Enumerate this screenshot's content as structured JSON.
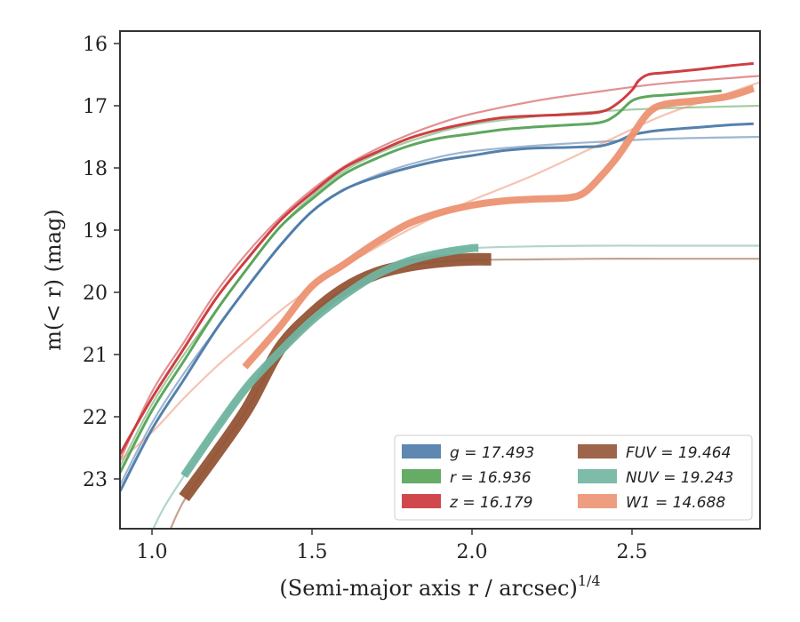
{
  "chart_data": {
    "type": "line",
    "xlabel": "(Semi-major axis r / arcsec)",
    "xlabel_sup": "1/4",
    "ylabel": "m(< r) (mag)",
    "xlim": [
      0.9,
      2.9
    ],
    "ylim": [
      23.8,
      15.8
    ],
    "y_inverted": true,
    "grid": false,
    "legend_position": "lower-right",
    "xticks": [
      1.0,
      1.5,
      2.0,
      2.5
    ],
    "xtick_labels": [
      "1.0",
      "1.5",
      "2.0",
      "2.5"
    ],
    "yticks": [
      16,
      17,
      18,
      19,
      20,
      21,
      22,
      23
    ],
    "ytick_labels": [
      "16",
      "17",
      "18",
      "19",
      "20",
      "21",
      "22",
      "23"
    ],
    "legend": [
      {
        "label": "g = 17.493",
        "color": "#4c7aa8"
      },
      {
        "label": "r = 16.936",
        "color": "#55a255"
      },
      {
        "label": "z = 16.179",
        "color": "#cc3438"
      },
      {
        "label": "FUV = 19.464",
        "color": "#935436"
      },
      {
        "label": "NUV = 19.243",
        "color": "#70b4a0"
      },
      {
        "label": "W1 = 14.688",
        "color": "#ec9272"
      }
    ],
    "series": [
      {
        "name": "g = 17.493",
        "band": "g",
        "color": "#4c7aa8",
        "data": {
          "x": [
            0.9,
            1.0,
            1.1,
            1.2,
            1.3,
            1.4,
            1.5,
            1.6,
            1.7,
            1.8,
            1.9,
            2.0,
            2.1,
            2.2,
            2.3,
            2.35,
            2.4,
            2.45,
            2.5,
            2.55,
            2.6,
            2.7,
            2.8,
            2.88
          ],
          "y": [
            23.2,
            22.2,
            21.4,
            20.6,
            19.9,
            19.25,
            18.7,
            18.35,
            18.15,
            18.0,
            17.88,
            17.8,
            17.72,
            17.68,
            17.67,
            17.66,
            17.65,
            17.58,
            17.47,
            17.42,
            17.39,
            17.35,
            17.31,
            17.29
          ],
          "width": 3
        },
        "model": {
          "x": [
            0.9,
            1.0,
            1.1,
            1.2,
            1.3,
            1.4,
            1.5,
            1.6,
            1.7,
            1.8,
            1.9,
            2.0,
            2.2,
            2.4,
            2.6,
            2.9
          ],
          "y": [
            23.1,
            22.1,
            21.3,
            20.6,
            19.9,
            19.25,
            18.7,
            18.35,
            18.12,
            17.95,
            17.82,
            17.73,
            17.64,
            17.58,
            17.53,
            17.5
          ]
        }
      },
      {
        "name": "r = 16.936",
        "band": "r",
        "color": "#55a255",
        "data": {
          "x": [
            0.9,
            1.0,
            1.1,
            1.2,
            1.3,
            1.4,
            1.5,
            1.6,
            1.7,
            1.8,
            1.9,
            2.0,
            2.1,
            2.2,
            2.3,
            2.4,
            2.45,
            2.5,
            2.55,
            2.6,
            2.7,
            2.78
          ],
          "y": [
            22.9,
            21.9,
            21.1,
            20.3,
            19.6,
            18.95,
            18.5,
            18.1,
            17.85,
            17.65,
            17.52,
            17.45,
            17.38,
            17.34,
            17.31,
            17.27,
            17.15,
            16.92,
            16.85,
            16.83,
            16.79,
            16.76
          ],
          "width": 3
        },
        "model": {
          "x": [
            0.9,
            1.0,
            1.1,
            1.2,
            1.3,
            1.4,
            1.5,
            1.6,
            1.7,
            1.8,
            1.9,
            2.0,
            2.2,
            2.4,
            2.6,
            2.9
          ],
          "y": [
            22.8,
            21.8,
            21.0,
            20.3,
            19.6,
            18.95,
            18.45,
            18.05,
            17.78,
            17.58,
            17.42,
            17.3,
            17.17,
            17.09,
            17.04,
            17.0
          ]
        }
      },
      {
        "name": "z = 16.179",
        "band": "z",
        "color": "#cc3438",
        "data": {
          "x": [
            0.9,
            1.0,
            1.1,
            1.2,
            1.3,
            1.4,
            1.5,
            1.6,
            1.7,
            1.8,
            1.9,
            2.0,
            2.1,
            2.2,
            2.3,
            2.4,
            2.45,
            2.5,
            2.52,
            2.55,
            2.6,
            2.7,
            2.8,
            2.88
          ],
          "y": [
            22.6,
            21.7,
            20.9,
            20.1,
            19.45,
            18.85,
            18.4,
            18.0,
            17.75,
            17.53,
            17.38,
            17.27,
            17.19,
            17.16,
            17.14,
            17.1,
            16.98,
            16.75,
            16.6,
            16.5,
            16.47,
            16.42,
            16.36,
            16.32
          ],
          "width": 3
        },
        "model": {
          "x": [
            0.9,
            1.0,
            1.1,
            1.2,
            1.3,
            1.4,
            1.5,
            1.6,
            1.7,
            1.8,
            1.9,
            2.0,
            2.2,
            2.4,
            2.6,
            2.9
          ],
          "y": [
            22.7,
            21.6,
            20.8,
            20.0,
            19.35,
            18.8,
            18.35,
            17.98,
            17.7,
            17.47,
            17.28,
            17.13,
            16.92,
            16.77,
            16.64,
            16.52
          ]
        }
      },
      {
        "name": "FUV = 19.464",
        "band": "FUV",
        "color": "#935436",
        "data": {
          "x": [
            1.1,
            1.2,
            1.3,
            1.4,
            1.5,
            1.6,
            1.7,
            1.8,
            1.9,
            2.0,
            2.06
          ],
          "y": [
            23.3,
            22.6,
            21.85,
            20.9,
            20.35,
            19.95,
            19.7,
            19.57,
            19.5,
            19.47,
            19.47
          ],
          "width": 14
        },
        "model": {
          "x": [
            1.05,
            1.1,
            1.2,
            1.3,
            1.4,
            1.5,
            1.6,
            1.7,
            1.8,
            1.9,
            2.0,
            2.2,
            2.4,
            2.6,
            2.9
          ],
          "y": [
            23.9,
            23.35,
            22.6,
            21.85,
            20.95,
            20.35,
            19.95,
            19.7,
            19.57,
            19.51,
            19.48,
            19.47,
            19.46,
            19.46,
            19.46
          ]
        }
      },
      {
        "name": "NUV = 19.243",
        "band": "NUV",
        "color": "#70b4a0",
        "data": {
          "x": [
            1.1,
            1.2,
            1.3,
            1.4,
            1.5,
            1.6,
            1.7,
            1.8,
            1.9,
            2.0,
            2.02
          ],
          "y": [
            22.95,
            22.2,
            21.5,
            20.95,
            20.45,
            20.05,
            19.72,
            19.5,
            19.37,
            19.29,
            19.29
          ],
          "width": 9
        },
        "model": {
          "x": [
            0.9,
            1.0,
            1.1,
            1.2,
            1.3,
            1.4,
            1.5,
            1.6,
            1.7,
            1.8,
            1.9,
            2.0,
            2.2,
            2.4,
            2.6,
            2.9
          ],
          "y": [
            25.4,
            23.85,
            22.95,
            22.2,
            21.5,
            20.95,
            20.45,
            20.05,
            19.72,
            19.5,
            19.37,
            19.29,
            19.26,
            19.25,
            19.25,
            19.25
          ]
        }
      },
      {
        "name": "W1 = 14.688",
        "band": "W1",
        "color": "#ec9272",
        "data": {
          "x": [
            1.29,
            1.4,
            1.5,
            1.6,
            1.7,
            1.8,
            1.9,
            2.0,
            2.1,
            2.2,
            2.3,
            2.35,
            2.4,
            2.45,
            2.5,
            2.55,
            2.6,
            2.7,
            2.8,
            2.88
          ],
          "y": [
            21.2,
            20.55,
            19.9,
            19.55,
            19.2,
            18.9,
            18.72,
            18.6,
            18.53,
            18.5,
            18.48,
            18.4,
            18.15,
            17.85,
            17.48,
            17.12,
            16.98,
            16.92,
            16.85,
            16.72
          ],
          "width": 8
        },
        "model": {
          "x": [
            0.9,
            1.0,
            1.1,
            1.2,
            1.3,
            1.4,
            1.5,
            1.6,
            1.7,
            1.8,
            1.9,
            2.0,
            2.2,
            2.4,
            2.6,
            2.8,
            2.9
          ],
          "y": [
            22.7,
            22.25,
            21.7,
            21.2,
            20.75,
            20.3,
            19.92,
            19.58,
            19.28,
            19.0,
            18.75,
            18.52,
            18.1,
            17.62,
            17.15,
            16.8,
            16.62
          ]
        }
      }
    ]
  }
}
